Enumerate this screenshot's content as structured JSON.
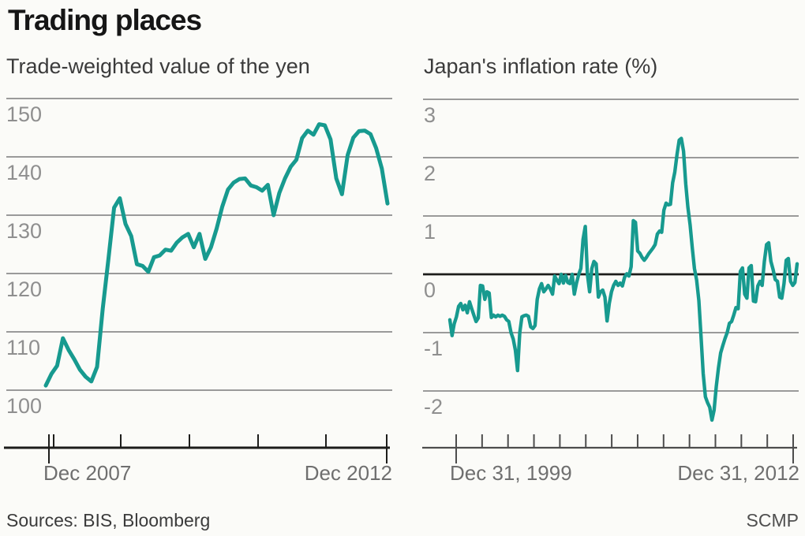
{
  "title": "Trading places",
  "footer": {
    "sources": "Sources: BIS, Bloomberg",
    "credit": "SCMP"
  },
  "colors": {
    "line": "#179a8f",
    "grid": "#8c8c8c",
    "axis_left": "#1d1d1b",
    "axis_right": "#4d4d4d",
    "zero_line": "#1d1d1b"
  },
  "chart_data": [
    {
      "type": "line",
      "title": "Trade-weighted value of the yen",
      "frequency": "monthly",
      "xtick_labels": [
        "Dec 2007",
        "Dec 2012"
      ],
      "yticks": [
        150,
        140,
        130,
        120,
        110,
        100
      ],
      "ylim": [
        98,
        152
      ],
      "grid": true,
      "values": [
        100.8,
        102.8,
        104.2,
        108.9,
        106.9,
        105.3,
        103.5,
        102.3,
        101.5,
        104.0,
        114.0,
        122.5,
        131.3,
        132.9,
        128.5,
        126.4,
        121.6,
        121.3,
        120.3,
        122.8,
        123.1,
        124.1,
        123.9,
        125.3,
        126.2,
        126.8,
        124.5,
        126.8,
        122.5,
        124.5,
        127.7,
        131.5,
        134.4,
        135.6,
        136.2,
        136.3,
        135.1,
        134.8,
        134.2,
        135.2,
        130.0,
        133.8,
        136.3,
        138.3,
        139.5,
        143.2,
        144.5,
        143.8,
        145.6,
        145.4,
        143.0,
        136.3,
        133.6,
        140.3,
        143.3,
        144.4,
        144.5,
        143.9,
        141.5,
        138.0,
        132.0
      ]
    },
    {
      "type": "line",
      "title": "Japan's inflation rate (%)",
      "frequency": "monthly",
      "xtick_labels": [
        "Dec 31, 1999",
        "Dec 31, 2012"
      ],
      "yticks": [
        3,
        2,
        1,
        0,
        -1,
        -2
      ],
      "ylim": [
        -2.7,
        3.2
      ],
      "grid": true,
      "zero_line": true,
      "values": [
        -0.78,
        -1.05,
        -0.85,
        -0.73,
        -0.55,
        -0.5,
        -0.61,
        -0.53,
        -0.66,
        -0.47,
        -0.59,
        -0.7,
        -0.81,
        -0.75,
        -0.19,
        -0.2,
        -0.43,
        -0.3,
        -0.32,
        -0.74,
        -0.7,
        -0.73,
        -0.7,
        -0.72,
        -0.7,
        -0.72,
        -0.78,
        -0.81,
        -1.0,
        -1.11,
        -1.3,
        -1.65,
        -1.0,
        -0.73,
        -0.71,
        -0.7,
        -0.72,
        -0.9,
        -0.93,
        -0.88,
        -0.43,
        -0.25,
        -0.16,
        -0.3,
        -0.25,
        -0.19,
        -0.25,
        -0.34,
        -0.03,
        -0.1,
        -0.16,
        0.0,
        -0.15,
        -0.02,
        -0.14,
        -0.16,
        0.0,
        -0.34,
        -0.15,
        0.0,
        0.1,
        0.6,
        0.82,
        0.0,
        -0.3,
        0.1,
        0.22,
        0.18,
        -0.39,
        -0.3,
        -0.27,
        -0.39,
        -0.8,
        -0.5,
        -0.3,
        -0.19,
        -0.12,
        -0.19,
        -0.15,
        -0.2,
        -0.05,
        0.01,
        -0.03,
        0.13,
        0.92,
        0.89,
        0.4,
        0.36,
        0.29,
        0.24,
        0.29,
        0.35,
        0.4,
        0.45,
        0.51,
        0.69,
        0.74,
        0.72,
        1.1,
        1.22,
        1.19,
        1.2,
        1.57,
        1.75,
        2.05,
        2.3,
        2.33,
        2.11,
        1.55,
        1.15,
        0.85,
        0.45,
        0.1,
        -0.1,
        -0.45,
        -1.05,
        -1.7,
        -2.1,
        -2.2,
        -2.28,
        -2.5,
        -2.33,
        -1.92,
        -1.6,
        -1.35,
        -1.22,
        -1.1,
        -1.0,
        -0.84,
        -0.81,
        -0.7,
        -0.57,
        -0.59,
        0.05,
        0.11,
        -0.34,
        -0.41,
        0.11,
        0.15,
        -0.46,
        -0.47,
        -0.2,
        -0.12,
        -0.19,
        0.22,
        0.51,
        0.54,
        0.22,
        0.08,
        -0.09,
        -0.12,
        -0.39,
        -0.41,
        -0.16,
        0.24,
        0.27,
        -0.12,
        -0.19,
        -0.14,
        0.18
      ]
    }
  ]
}
